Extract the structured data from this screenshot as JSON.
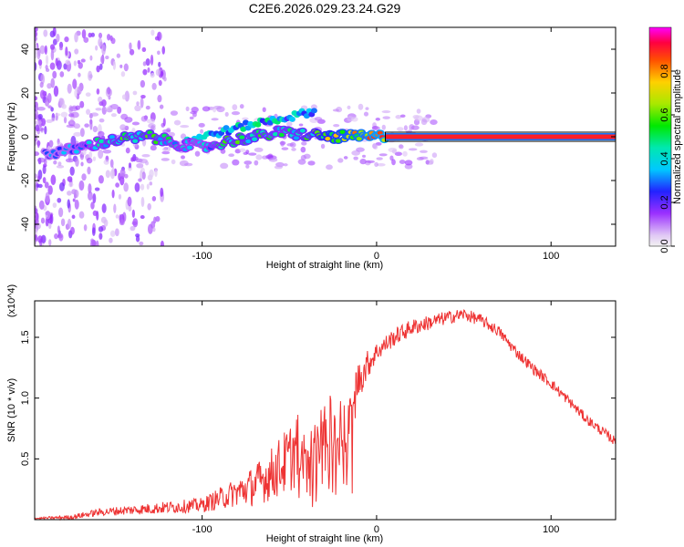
{
  "chart_data": [
    {
      "type": "heatmap",
      "title": "C2E6.2026.029.23.24.G29",
      "xlabel": "Height of straight line (km)",
      "ylabel": "Frequency (Hz)",
      "xlim": [
        -196,
        137
      ],
      "ylim": [
        -50,
        50
      ],
      "x_ticks": [
        -100,
        0,
        100
      ],
      "y_ticks": [
        -40,
        -20,
        0,
        20,
        40
      ],
      "colorbar": {
        "label": "Normalized spectral amplitude",
        "range": [
          0,
          1
        ],
        "ticks": [
          0,
          0.2,
          0.4,
          0.6,
          0.8
        ],
        "tick_labels": [
          "0.0",
          "0.2",
          "0.4",
          "0.6",
          "0.8"
        ],
        "stops": [
          {
            "value": 0.0,
            "color": "#f2f2f2"
          },
          {
            "value": 0.05,
            "color": "#e0c8f5"
          },
          {
            "value": 0.15,
            "color": "#9b30ff"
          },
          {
            "value": 0.25,
            "color": "#2222ff"
          },
          {
            "value": 0.35,
            "color": "#00c8ff"
          },
          {
            "value": 0.45,
            "color": "#00e8b0"
          },
          {
            "value": 0.55,
            "color": "#00e800"
          },
          {
            "value": 0.65,
            "color": "#a8e800"
          },
          {
            "value": 0.75,
            "color": "#ffd000"
          },
          {
            "value": 0.85,
            "color": "#ff5000"
          },
          {
            "value": 0.93,
            "color": "#ff0040"
          },
          {
            "value": 1.0,
            "color": "#ff00ff"
          }
        ]
      },
      "signal_track": [
        {
          "x": -190,
          "f": -8,
          "amp": 0.3
        },
        {
          "x": -175,
          "f": -6,
          "amp": 0.35
        },
        {
          "x": -160,
          "f": -3,
          "amp": 0.45
        },
        {
          "x": -145,
          "f": -1,
          "amp": 0.55
        },
        {
          "x": -130,
          "f": 0,
          "amp": 0.55
        },
        {
          "x": -115,
          "f": -3,
          "amp": 0.45
        },
        {
          "x": -100,
          "f": -5,
          "amp": 0.4
        },
        {
          "x": -85,
          "f": -2,
          "amp": 0.55
        },
        {
          "x": -70,
          "f": 0,
          "amp": 0.55
        },
        {
          "x": -55,
          "f": 2,
          "amp": 0.5
        },
        {
          "x": -40,
          "f": 1,
          "amp": 0.55
        },
        {
          "x": -25,
          "f": 0,
          "amp": 0.75
        },
        {
          "x": -10,
          "f": 0,
          "amp": 0.85
        },
        {
          "x": 5,
          "f": 0,
          "amp": 0.95
        },
        {
          "x": 137,
          "f": 0,
          "amp": 0.95
        }
      ],
      "drift_track": [
        {
          "x": -110,
          "f": -2,
          "amp": 0.35
        },
        {
          "x": -90,
          "f": 2,
          "amp": 0.4
        },
        {
          "x": -70,
          "f": 6,
          "amp": 0.45
        },
        {
          "x": -50,
          "f": 9,
          "amp": 0.4
        },
        {
          "x": -35,
          "f": 12,
          "amp": 0.3
        }
      ]
    },
    {
      "type": "line",
      "xlabel": "Height of straight line (km)",
      "ylabel": "SNR (10 * v/v)",
      "y_scale_label": "(x10^4)",
      "xlim": [
        -196,
        137
      ],
      "ylim": [
        0,
        1.8
      ],
      "x_ticks": [
        -100,
        0,
        100
      ],
      "y_ticks": [
        0.5,
        1.0,
        1.5
      ],
      "y_tick_labels": [
        "0.5",
        "1.0",
        "1.5"
      ],
      "color": "#ee3333",
      "envelope": {
        "x": [
          -196,
          -175,
          -160,
          -140,
          -120,
          -100,
          -85,
          -70,
          -60,
          -50,
          -40,
          -30,
          -25,
          -20,
          -15,
          -10,
          -5,
          0,
          10,
          20,
          30,
          40,
          50,
          60,
          70,
          80,
          90,
          100,
          110,
          120,
          130,
          137
        ],
        "y": [
          0.01,
          0.02,
          0.06,
          0.08,
          0.1,
          0.12,
          0.2,
          0.28,
          0.38,
          0.5,
          0.7,
          0.9,
          0.95,
          1.0,
          1.05,
          1.15,
          1.28,
          1.38,
          1.5,
          1.58,
          1.62,
          1.66,
          1.69,
          1.64,
          1.55,
          1.38,
          1.24,
          1.12,
          0.98,
          0.83,
          0.72,
          0.64
        ]
      },
      "noise_amplitude": {
        "x": [
          -196,
          -160,
          -100,
          -80,
          -60,
          -40,
          -20,
          -15,
          0,
          50,
          137
        ],
        "y": [
          0.005,
          0.03,
          0.06,
          0.12,
          0.22,
          0.35,
          0.55,
          0.2,
          0.08,
          0.05,
          0.04
        ]
      }
    }
  ]
}
